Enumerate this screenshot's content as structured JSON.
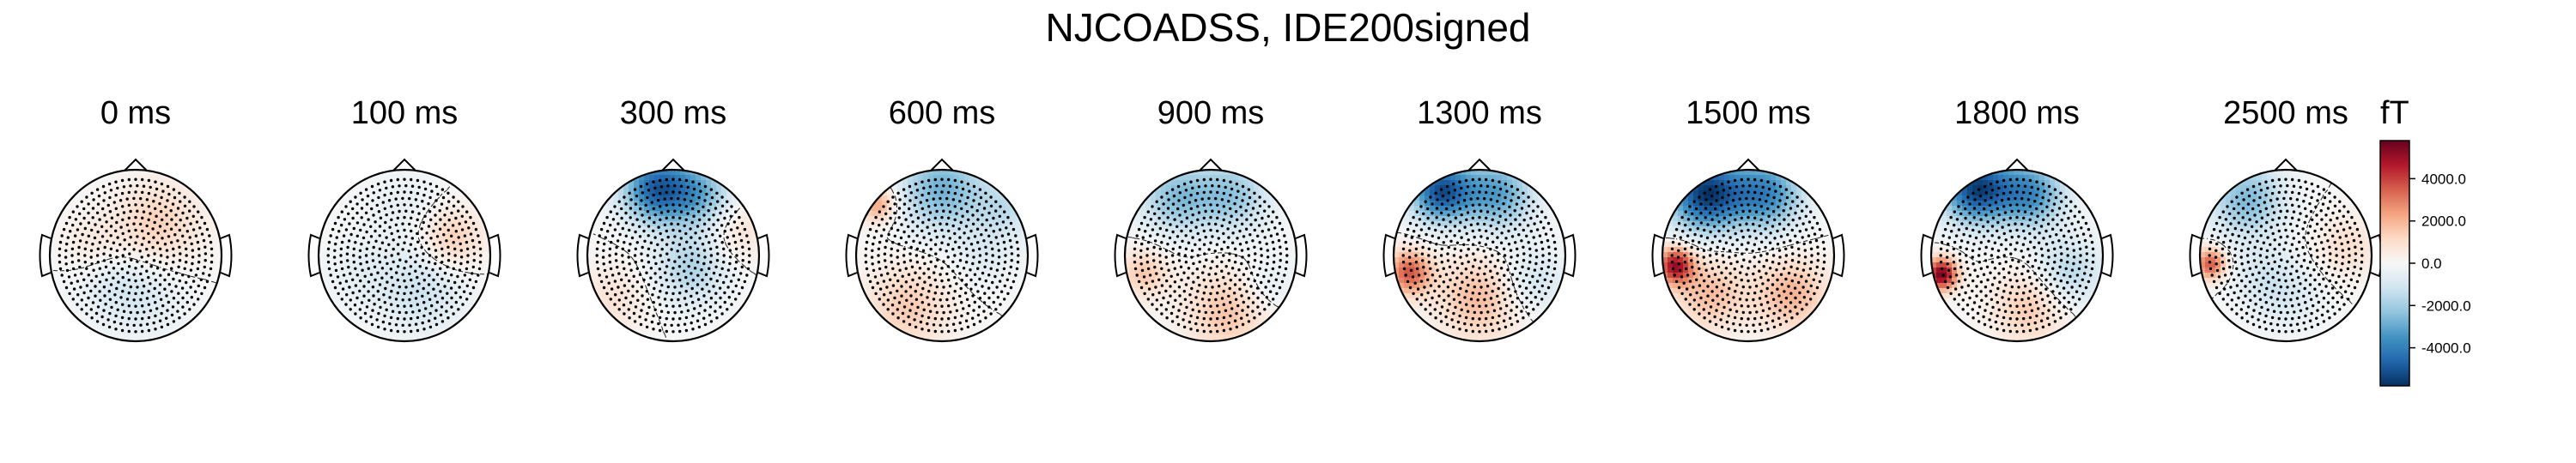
{
  "chart_data": {
    "type": "topomap",
    "title": "NJCOADSS, IDE200signed",
    "unit": "fT",
    "colormap": "RdBu_r",
    "vmin": -5800,
    "vmax": 5800,
    "colorbar_ticks": [
      {
        "value": 4000,
        "label": "4000.0"
      },
      {
        "value": 2000,
        "label": "2000.0"
      },
      {
        "value": 0,
        "label": "0.0"
      },
      {
        "value": -2000,
        "label": "-2000.0"
      },
      {
        "value": -4000,
        "label": "-4000.0"
      }
    ],
    "maps": [
      {
        "label": "0 ms",
        "sources": [
          [
            0.25,
            -0.35,
            1400,
            0.35
          ],
          [
            -0.5,
            -0.1,
            700,
            0.25
          ],
          [
            0.05,
            0.45,
            -900,
            0.35
          ],
          [
            -0.35,
            0.25,
            -500,
            0.3
          ]
        ]
      },
      {
        "label": "100 ms",
        "sources": [
          [
            0.55,
            -0.2,
            1500,
            0.25
          ],
          [
            0.2,
            0.4,
            -1200,
            0.35
          ],
          [
            -0.5,
            0.2,
            -500,
            0.3
          ],
          [
            0.0,
            -0.6,
            -500,
            0.3
          ]
        ]
      },
      {
        "label": "300 ms",
        "sources": [
          [
            -0.2,
            -0.78,
            -4500,
            0.28
          ],
          [
            0.3,
            -0.72,
            -2600,
            0.28
          ],
          [
            0.2,
            0.15,
            -1800,
            0.3
          ],
          [
            0.75,
            -0.3,
            900,
            0.25
          ],
          [
            -0.7,
            0.5,
            800,
            0.3
          ]
        ]
      },
      {
        "label": "600 ms",
        "sources": [
          [
            0.0,
            -0.78,
            -2800,
            0.35
          ],
          [
            -0.75,
            -0.6,
            2400,
            0.15
          ],
          [
            0.75,
            -0.55,
            -1300,
            0.25
          ],
          [
            -0.4,
            0.6,
            1500,
            0.35
          ],
          [
            0.5,
            0.0,
            -700,
            0.25
          ]
        ]
      },
      {
        "label": "900 ms",
        "sources": [
          [
            -0.4,
            -0.68,
            -2400,
            0.3
          ],
          [
            0.25,
            -0.7,
            -2200,
            0.3
          ],
          [
            -0.78,
            0.2,
            1600,
            0.2
          ],
          [
            0.2,
            0.65,
            1700,
            0.35
          ],
          [
            0.65,
            0.35,
            -800,
            0.25
          ]
        ]
      },
      {
        "label": "1300 ms",
        "sources": [
          [
            -0.45,
            -0.75,
            -5000,
            0.25
          ],
          [
            0.2,
            -0.72,
            -3200,
            0.3
          ],
          [
            -0.82,
            0.2,
            3600,
            0.18
          ],
          [
            0.0,
            0.5,
            1900,
            0.35
          ],
          [
            0.6,
            0.3,
            -1200,
            0.28
          ]
        ]
      },
      {
        "label": "1500 ms",
        "sources": [
          [
            -0.5,
            -0.72,
            -5500,
            0.3
          ],
          [
            0.2,
            -0.72,
            -3800,
            0.3
          ],
          [
            -0.85,
            0.12,
            4800,
            0.15
          ],
          [
            -0.45,
            0.45,
            1800,
            0.3
          ],
          [
            0.5,
            0.45,
            2000,
            0.3
          ]
        ]
      },
      {
        "label": "1800 ms",
        "sources": [
          [
            -0.48,
            -0.78,
            -5300,
            0.28
          ],
          [
            0.15,
            -0.72,
            -3600,
            0.28
          ],
          [
            -0.88,
            0.22,
            5600,
            0.13
          ],
          [
            0.15,
            0.6,
            1600,
            0.3
          ],
          [
            0.6,
            0.2,
            -1700,
            0.28
          ]
        ]
      },
      {
        "label": "2500 ms",
        "sources": [
          [
            -0.45,
            -0.65,
            -2600,
            0.3
          ],
          [
            -0.88,
            0.1,
            3600,
            0.13
          ],
          [
            0.7,
            -0.1,
            1000,
            0.25
          ],
          [
            0.0,
            0.45,
            -900,
            0.3
          ],
          [
            -0.3,
            0.2,
            -700,
            0.25
          ]
        ]
      }
    ]
  }
}
